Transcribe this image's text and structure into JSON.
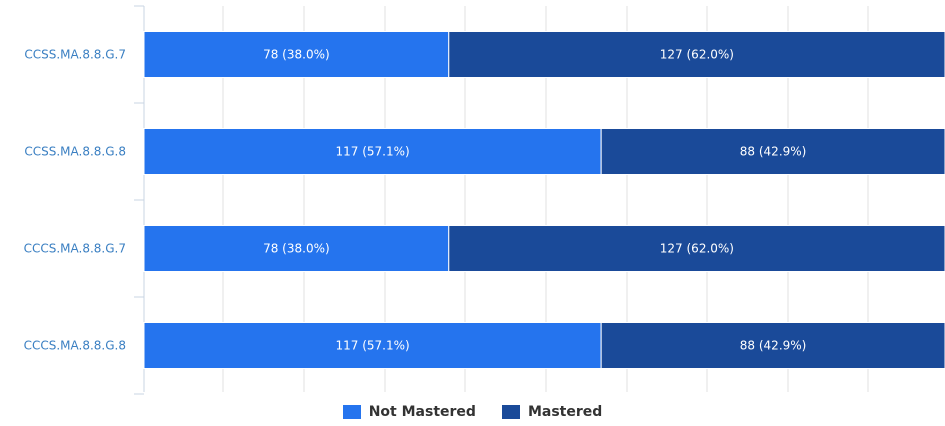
{
  "chart_data": {
    "type": "bar",
    "orientation": "horizontal",
    "stacked": true,
    "categories": [
      "CCSS.MA.8.8.G.7",
      "CCSS.MA.8.8.G.8",
      "CCCS.MA.8.8.G.7",
      "CCCS.MA.8.8.G.8"
    ],
    "series": [
      {
        "name": "Not Mastered",
        "color": "#2574ee",
        "values": [
          78,
          117,
          78,
          117
        ],
        "labels": [
          "78 (38.0%)",
          "117 (57.1%)",
          "78 (38.0%)",
          "117 (57.1%)"
        ]
      },
      {
        "name": "Mastered",
        "color": "#1a4a99",
        "values": [
          127,
          88,
          127,
          88
        ],
        "labels": [
          "127 (62.0%)",
          "88 (42.9%)",
          "127 (62.0%)",
          "88 (42.9%)"
        ]
      }
    ],
    "xlim": [
      0,
      205
    ],
    "grid": true,
    "legend_position": "bottom-center"
  }
}
